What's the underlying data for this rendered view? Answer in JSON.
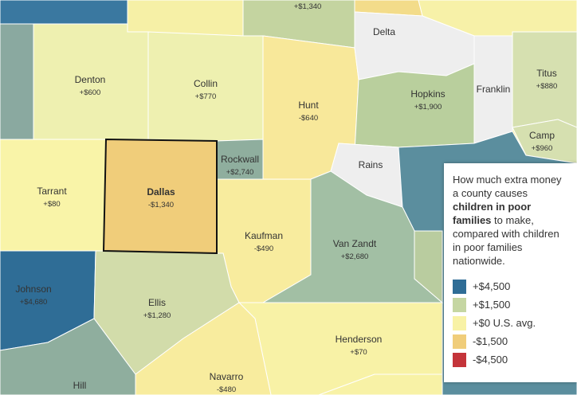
{
  "map": {
    "counties": [
      {
        "name": "Denton",
        "value": "+$600"
      },
      {
        "name": "Collin",
        "value": "+$770"
      },
      {
        "name": "Hunt",
        "value": "-$640"
      },
      {
        "name": "Delta"
      },
      {
        "name": "Hopkins",
        "value": "+$1,900"
      },
      {
        "name": "Franklin"
      },
      {
        "name": "Titus",
        "value": "+$880"
      },
      {
        "name": "Camp",
        "value": "+$960"
      },
      {
        "name": "Rains"
      },
      {
        "name": "Rockwall",
        "value": "+$2,740"
      },
      {
        "name": "Tarrant",
        "value": "+$80"
      },
      {
        "name": "Dallas",
        "value": "-$1,340"
      },
      {
        "name": "Kaufman",
        "value": "-$490"
      },
      {
        "name": "Van Zandt",
        "value": "+$2,680"
      },
      {
        "name": "Johnson",
        "value": "+$4,680"
      },
      {
        "name": "Ellis",
        "value": "+$1,280"
      },
      {
        "name": "Henderson",
        "value": "+$70"
      },
      {
        "name": "Navarro",
        "value": "-$480"
      },
      {
        "name": "Hill"
      },
      {
        "value": "+$1,340"
      }
    ]
  },
  "legend": {
    "intro": "How much extra money a county causes",
    "bold": "children in poor families",
    "outro": "to make, compared with children in poor families nationwide.",
    "items": [
      {
        "label": "+$4,500",
        "color": "#2f6d96"
      },
      {
        "label": "+$1,500",
        "color": "#c5d6a2"
      },
      {
        "label": "+$0 U.S. avg.",
        "color": "#f8f2a6"
      },
      {
        "label": "-$1,500",
        "color": "#f0cd7a"
      },
      {
        "label": "-$4,500",
        "color": "#c4343a"
      }
    ]
  }
}
